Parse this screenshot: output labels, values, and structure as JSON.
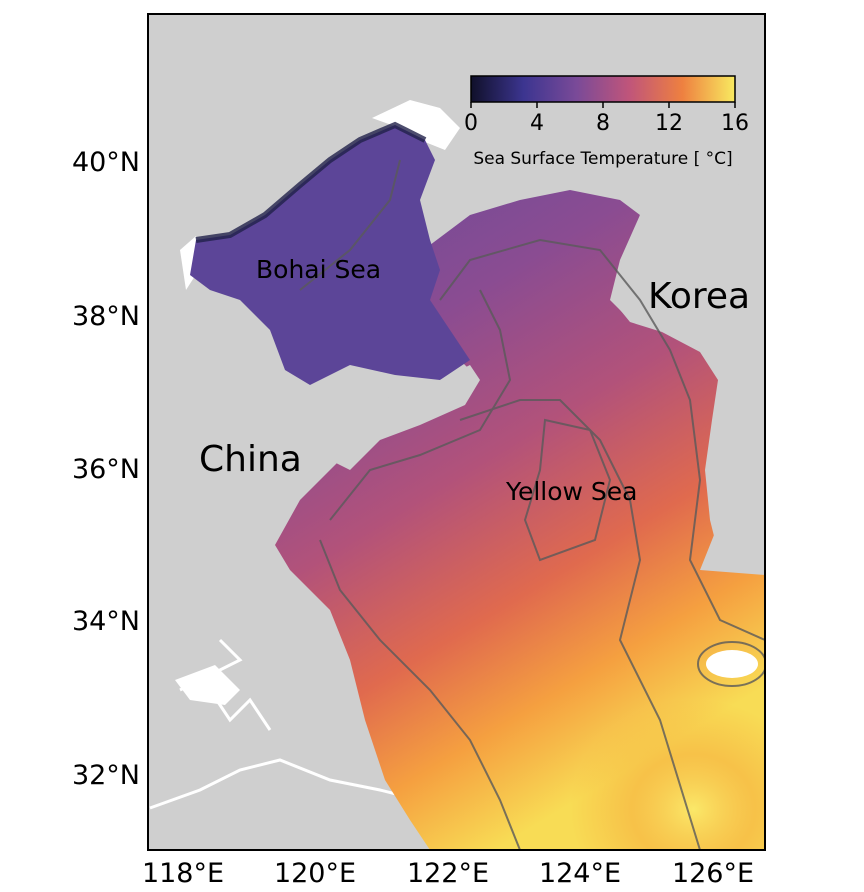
{
  "map": {
    "place_labels": {
      "bohai": "Bohai Sea",
      "yellow": "Yellow Sea",
      "china": "China",
      "korea": "Korea"
    },
    "lat_ticks": [
      "40°N",
      "38°N",
      "36°N",
      "34°N",
      "32°N"
    ],
    "lon_ticks": [
      "118°E",
      "120°E",
      "122°E",
      "124°E",
      "126°E"
    ],
    "colorbar": {
      "label": "Sea Surface Temperature [ °C]",
      "ticks": [
        "0",
        "4",
        "8",
        "12",
        "16"
      ],
      "range": [
        0,
        16
      ]
    },
    "colors": {
      "land": "#cfcfcf",
      "frame": "#000000",
      "contour": "#5a5a5a",
      "cold": "#1a1a45",
      "cool": "#4b3a90",
      "mid": "#a84a7a",
      "warm": "#e8703e",
      "hot": "#f8d84a"
    }
  }
}
